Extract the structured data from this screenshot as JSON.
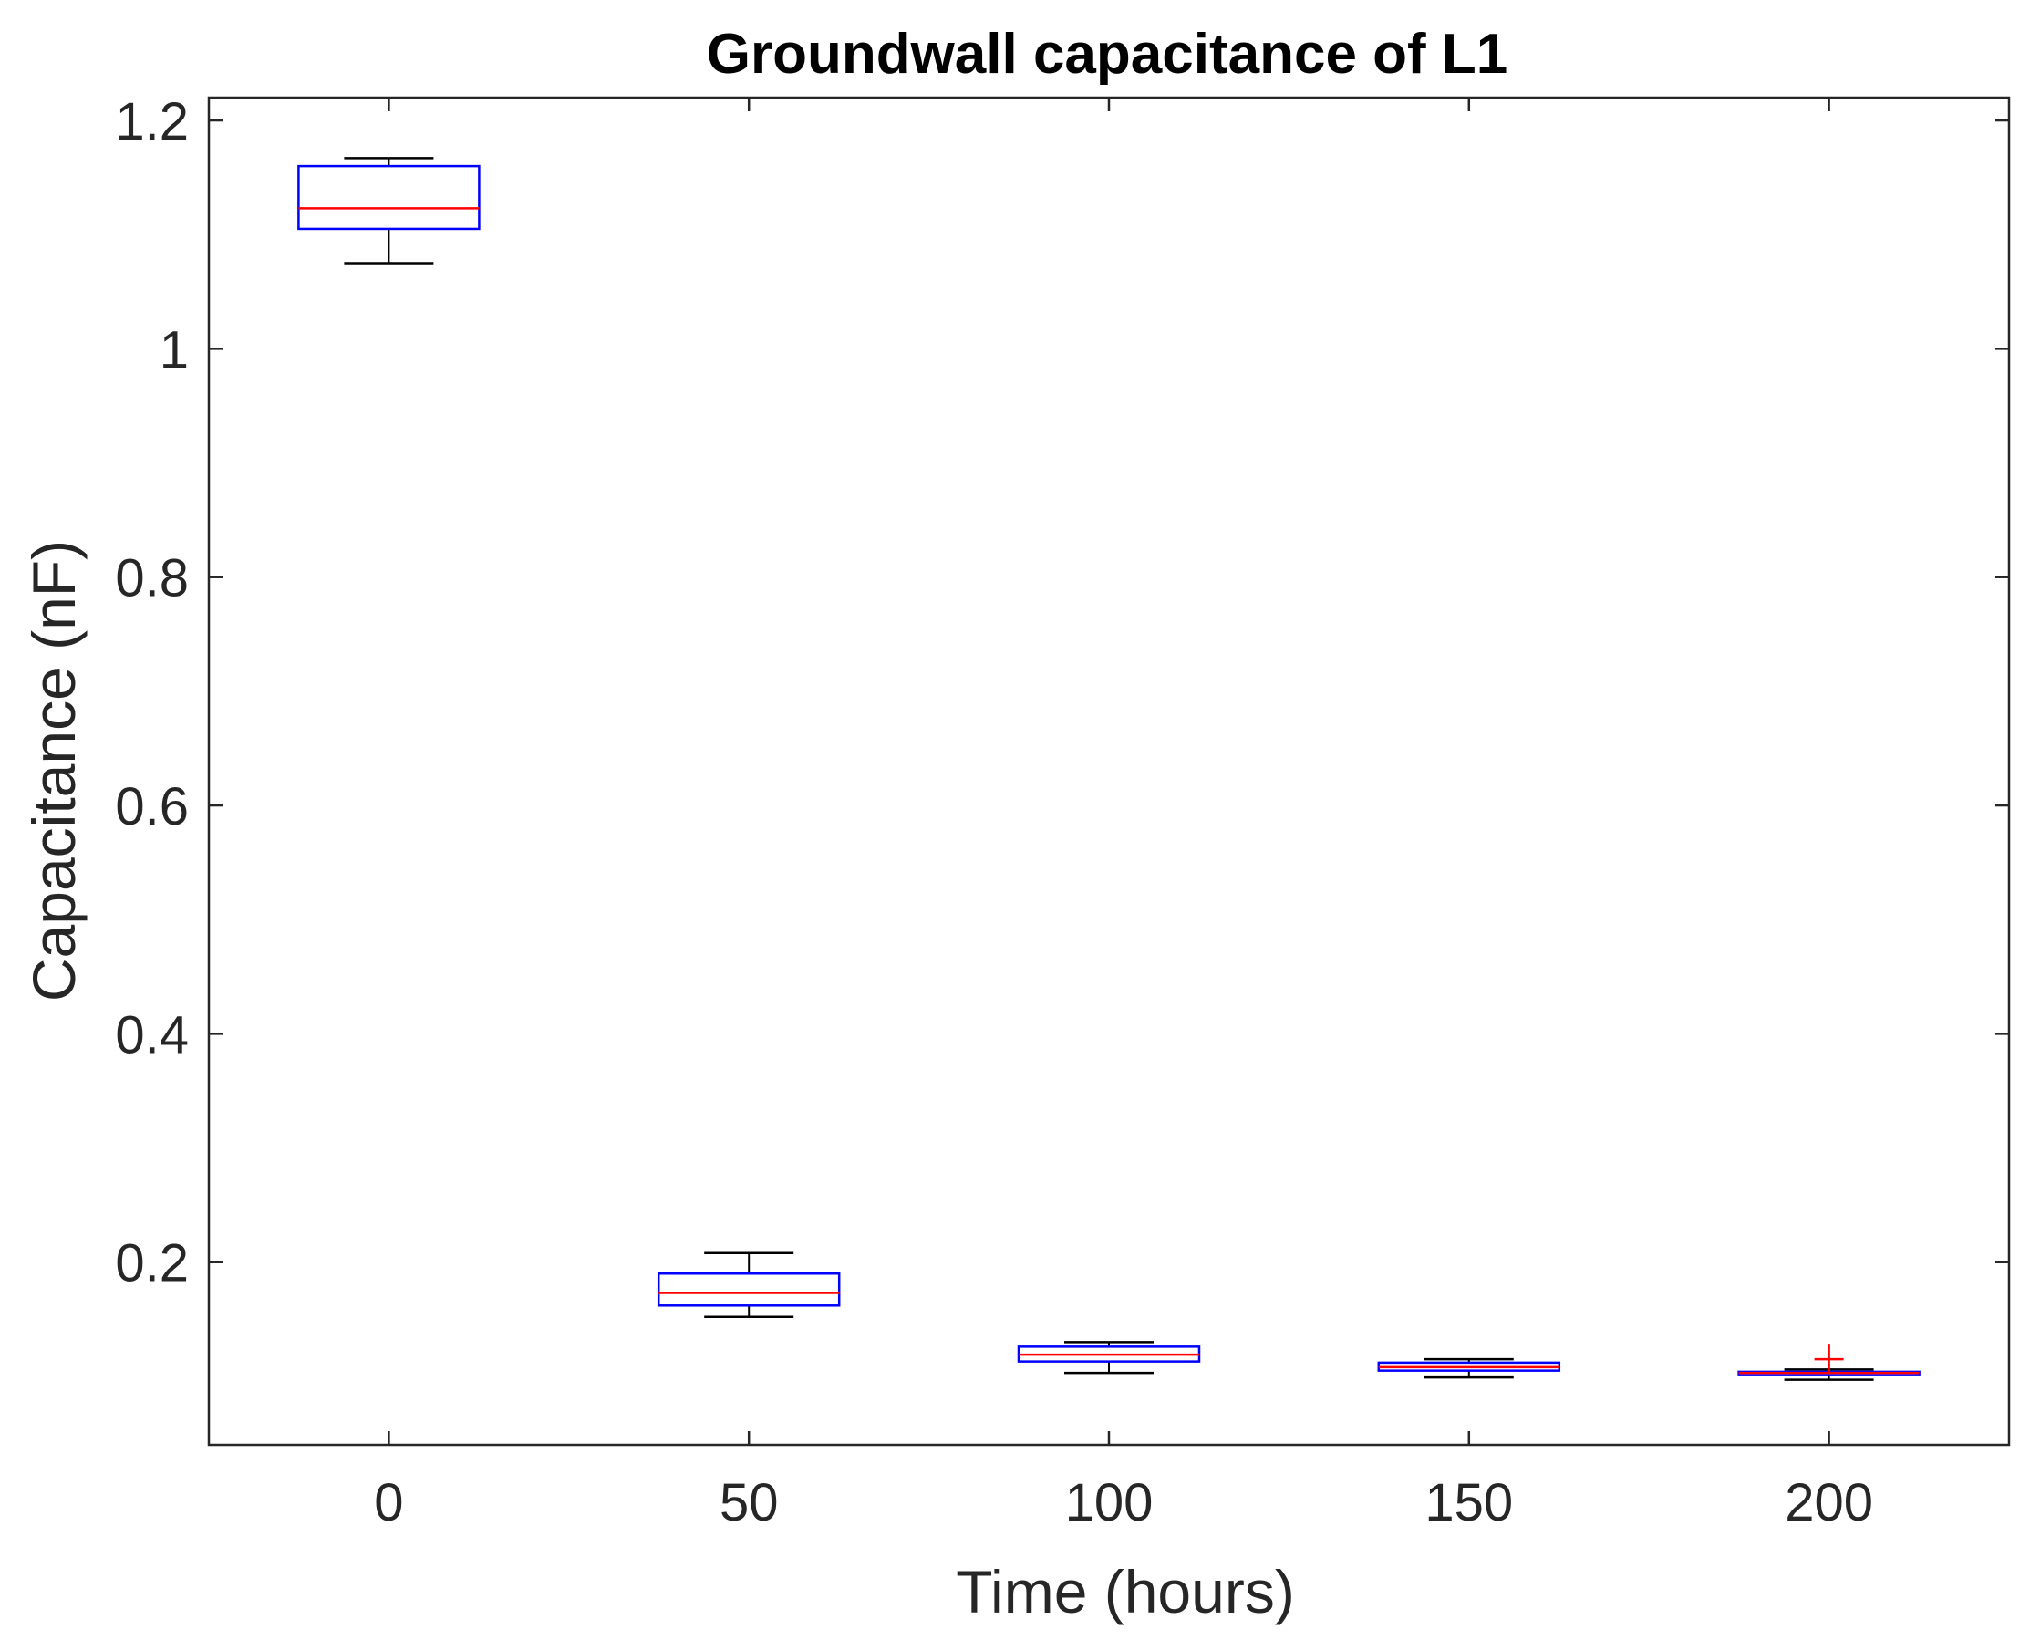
{
  "chart_data": {
    "type": "box",
    "title": "Groundwall capacitance of L1",
    "xlabel": "Time (hours)",
    "ylabel": "Capacitance (nF)",
    "xlim": [
      -25,
      225
    ],
    "ylim": [
      0.04,
      1.22
    ],
    "x_ticks": [
      "0",
      "50",
      "100",
      "150",
      "200"
    ],
    "y_ticks": [
      "0.2",
      "0.4",
      "0.6",
      "0.8",
      "1",
      "1.2"
    ],
    "y_tick_values": [
      0.2,
      0.4,
      0.6,
      0.8,
      1.0,
      1.2
    ],
    "grid": false,
    "colors": {
      "box": "#0000ff",
      "median": "#ff0000",
      "whisker": "#000000",
      "outlier": "#ff0000",
      "axis": "#262626"
    },
    "categories": [
      "0",
      "50",
      "100",
      "150",
      "200"
    ],
    "boxes": [
      {
        "x": 0,
        "whisker_low": 1.075,
        "q1": 1.105,
        "median": 1.123,
        "q3": 1.16,
        "whisker_high": 1.167,
        "outliers": []
      },
      {
        "x": 50,
        "whisker_low": 0.152,
        "q1": 0.162,
        "median": 0.173,
        "q3": 0.19,
        "whisker_high": 0.208,
        "outliers": []
      },
      {
        "x": 100,
        "whisker_low": 0.103,
        "q1": 0.113,
        "median": 0.119,
        "q3": 0.126,
        "whisker_high": 0.13,
        "outliers": []
      },
      {
        "x": 150,
        "whisker_low": 0.099,
        "q1": 0.105,
        "median": 0.108,
        "q3": 0.112,
        "whisker_high": 0.115,
        "outliers": []
      },
      {
        "x": 200,
        "whisker_low": 0.097,
        "q1": 0.101,
        "median": 0.103,
        "q3": 0.104,
        "whisker_high": 0.106,
        "outliers": [
          0.115
        ]
      }
    ]
  }
}
